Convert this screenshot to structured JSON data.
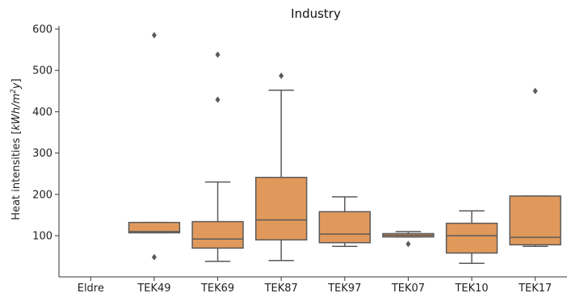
{
  "chart_data": {
    "type": "box",
    "title": "Industry",
    "ylabel_prefix": "Heat intensities [",
    "ylabel_unit_main": "kWh/m",
    "ylabel_unit_sup": "2",
    "ylabel_unit_end": "y",
    "ylabel_suffix": "]",
    "ylim": [
      -10,
      612
    ],
    "yticks": [
      100,
      200,
      300,
      400,
      500,
      600
    ],
    "ytick_labels": [
      "100",
      "200",
      "300",
      "400",
      "500",
      "600"
    ],
    "categories": [
      "Eldre",
      "TEK49",
      "TEK69",
      "TEK87",
      "TEK97",
      "TEK07",
      "TEK10",
      "TEK17"
    ],
    "boxes": [
      null,
      {
        "whislo": 107,
        "q1": 107,
        "med": 110,
        "q3": 132,
        "whishi": 132,
        "fliers": [
          585,
          48
        ]
      },
      {
        "whislo": 38,
        "q1": 70,
        "med": 92,
        "q3": 134,
        "whishi": 230,
        "fliers": [
          538,
          429
        ]
      },
      {
        "whislo": 40,
        "q1": 90,
        "med": 138,
        "q3": 241,
        "whishi": 452,
        "fliers": [
          487
        ]
      },
      {
        "whislo": 74,
        "q1": 83,
        "med": 104,
        "q3": 158,
        "whishi": 194,
        "fliers": []
      },
      {
        "whislo": 97,
        "q1": 97,
        "med": 101,
        "q3": 105,
        "whishi": 110,
        "fliers": [
          80
        ]
      },
      {
        "whislo": 33,
        "q1": 58,
        "med": 100,
        "q3": 130,
        "whishi": 160,
        "fliers": []
      },
      {
        "whislo": 74,
        "q1": 78,
        "med": 96,
        "q3": 196,
        "whishi": 196,
        "fliers": [
          450
        ]
      }
    ],
    "box_color": "#e1995b",
    "line_color": "#5a5a5a",
    "axis_color": "#333333"
  }
}
